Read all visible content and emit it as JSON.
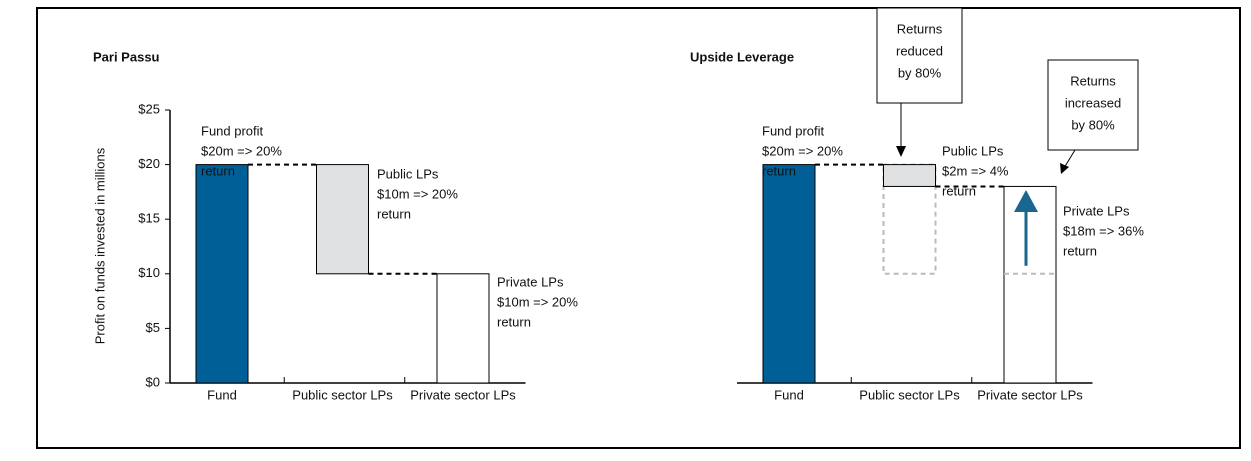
{
  "chart_data": [
    {
      "type": "waterfall",
      "title": "Pari Passu",
      "y_label": "Profit on funds invested in millions",
      "categories": [
        "Fund",
        "Public sector LPs",
        "Private sector LPs"
      ],
      "values": [
        20,
        -10,
        -10
      ],
      "colors": [
        "#005f96",
        "#e0e1e2",
        "#ffffff"
      ],
      "ylim": [
        0,
        25
      ],
      "yticks": [
        {
          "value": 0,
          "label": "$0"
        },
        {
          "value": 5,
          "label": "$5"
        },
        {
          "value": 10,
          "label": "$10"
        },
        {
          "value": 15,
          "label": "$15"
        },
        {
          "value": 20,
          "label": "$20"
        },
        {
          "value": 25,
          "label": "$25"
        }
      ],
      "annotations": [
        {
          "lines": [
            "Fund profit",
            "$20m => 20%",
            "return"
          ]
        },
        {
          "lines": [
            "Public LPs",
            "$10m => 20%",
            "return"
          ]
        },
        {
          "lines": [
            "Private LPs",
            "$10m => 20%",
            "return"
          ]
        }
      ]
    },
    {
      "type": "waterfall",
      "title": "Upside Leverage",
      "categories": [
        "Fund",
        "Public sector LPs",
        "Private sector LPs"
      ],
      "values": [
        20,
        -2,
        -18
      ],
      "colors": [
        "#005f96",
        "#e0e1e2",
        "#ffffff"
      ],
      "ylim": [
        0,
        25
      ],
      "annotations": [
        {
          "lines": [
            "Fund profit",
            "$20m => 20%",
            "return"
          ]
        },
        {
          "lines": [
            "Public LPs",
            "$2m => 4%",
            "return"
          ]
        },
        {
          "lines": [
            "Private LPs",
            "$18m => 36%",
            "return"
          ]
        }
      ],
      "callouts": [
        {
          "lines": [
            "Returns",
            "reduced",
            "by 80%"
          ]
        },
        {
          "lines": [
            "Returns",
            "increased",
            "by 80%"
          ]
        }
      ]
    }
  ]
}
